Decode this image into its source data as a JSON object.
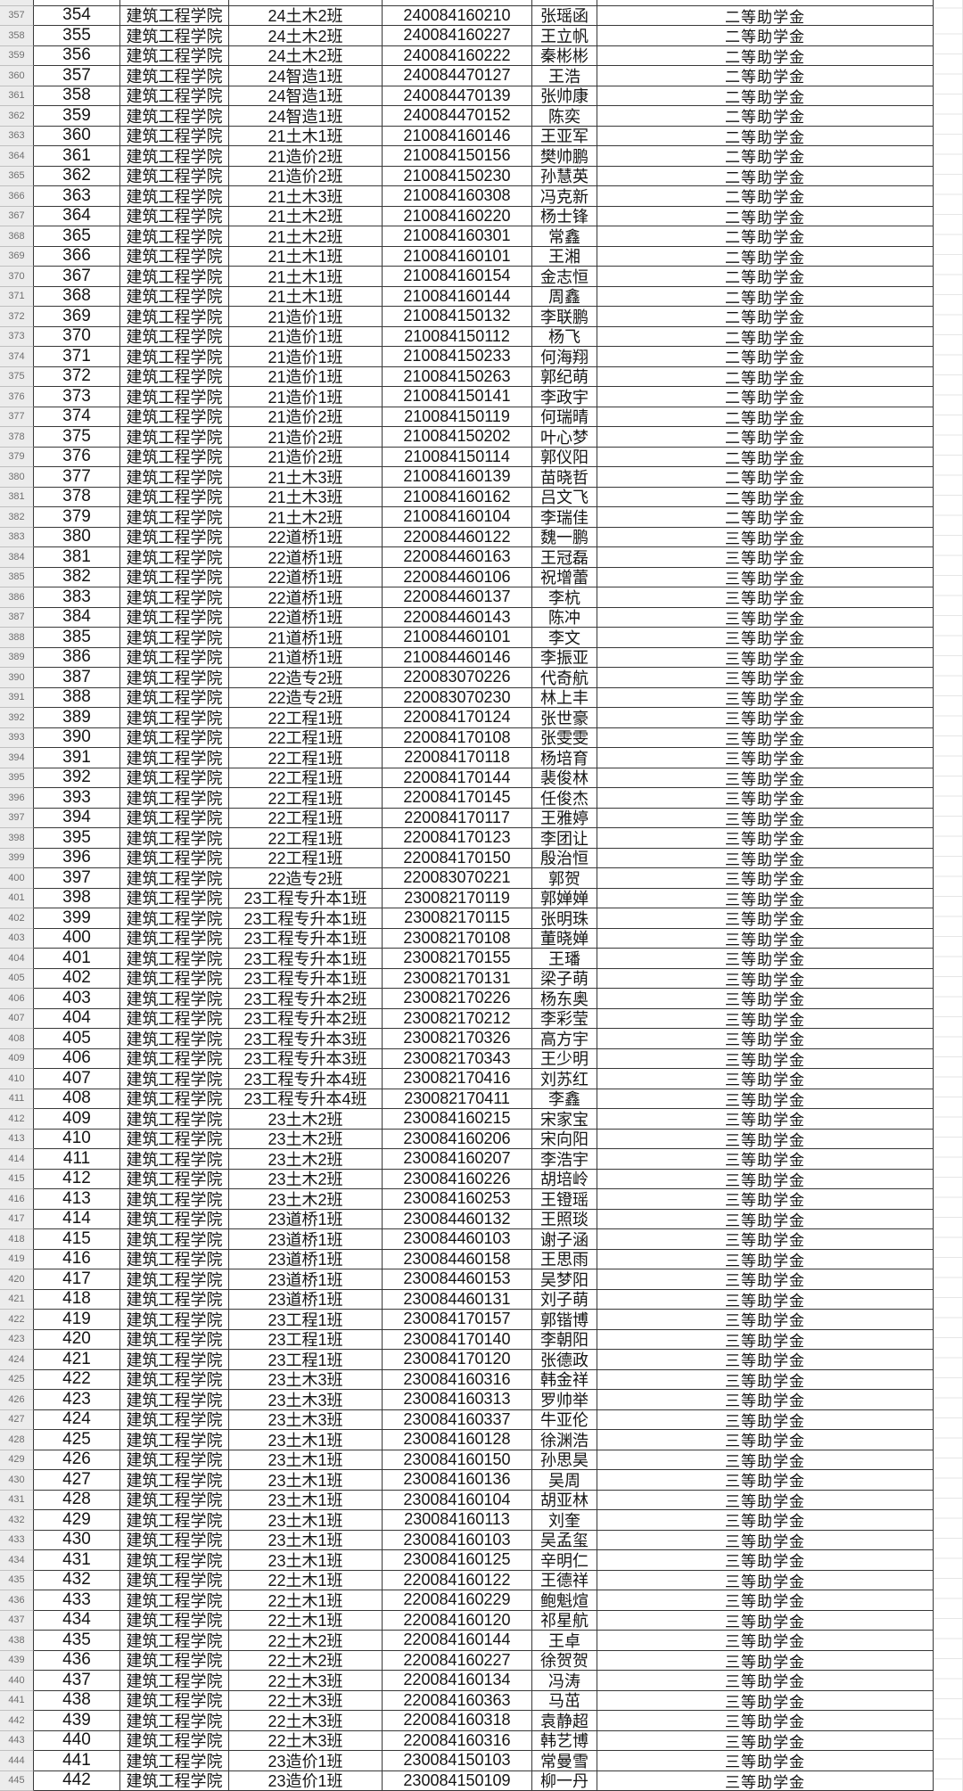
{
  "app": {
    "view": "spreadsheet-scholarship-roster"
  },
  "colors": {
    "bg": "#ffffff",
    "text": "#141414",
    "border_dark": "#383838",
    "border_light": "#bfbfbf",
    "row_header_bg": "#ececec",
    "row_header_text": "#6f6f6f",
    "grid_faint": "#e6e6e6"
  },
  "table": {
    "rows": [
      {
        "row": "357",
        "seq": "354",
        "college": "建筑工程学院",
        "class": "24土木2班",
        "student_id": "240084160210",
        "name": "张瑶函",
        "award": "二等助学金"
      },
      {
        "row": "358",
        "seq": "355",
        "college": "建筑工程学院",
        "class": "24土木2班",
        "student_id": "240084160227",
        "name": "王立帆",
        "award": "二等助学金"
      },
      {
        "row": "359",
        "seq": "356",
        "college": "建筑工程学院",
        "class": "24土木2班",
        "student_id": "240084160222",
        "name": "秦彬彬",
        "award": "二等助学金"
      },
      {
        "row": "360",
        "seq": "357",
        "college": "建筑工程学院",
        "class": "24智造1班",
        "student_id": "240084470127",
        "name": "王浩",
        "award": "二等助学金"
      },
      {
        "row": "361",
        "seq": "358",
        "college": "建筑工程学院",
        "class": "24智造1班",
        "student_id": "240084470139",
        "name": "张帅康",
        "award": "二等助学金"
      },
      {
        "row": "362",
        "seq": "359",
        "college": "建筑工程学院",
        "class": "24智造1班",
        "student_id": "240084470152",
        "name": "陈奕",
        "award": "二等助学金"
      },
      {
        "row": "363",
        "seq": "360",
        "college": "建筑工程学院",
        "class": "21土木1班",
        "student_id": "210084160146",
        "name": "王亚军",
        "award": "二等助学金"
      },
      {
        "row": "364",
        "seq": "361",
        "college": "建筑工程学院",
        "class": "21造价2班",
        "student_id": "210084150156",
        "name": "樊帅鹏",
        "award": "二等助学金"
      },
      {
        "row": "365",
        "seq": "362",
        "college": "建筑工程学院",
        "class": "21造价2班",
        "student_id": "210084150230",
        "name": "孙慧英",
        "award": "二等助学金"
      },
      {
        "row": "366",
        "seq": "363",
        "college": "建筑工程学院",
        "class": "21土木3班",
        "student_id": "210084160308",
        "name": "冯克新",
        "award": "二等助学金"
      },
      {
        "row": "367",
        "seq": "364",
        "college": "建筑工程学院",
        "class": "21土木2班",
        "student_id": "210084160220",
        "name": "杨士锋",
        "award": "二等助学金"
      },
      {
        "row": "368",
        "seq": "365",
        "college": "建筑工程学院",
        "class": "21土木2班",
        "student_id": "210084160301",
        "name": "常鑫",
        "award": "二等助学金"
      },
      {
        "row": "369",
        "seq": "366",
        "college": "建筑工程学院",
        "class": "21土木1班",
        "student_id": "210084160101",
        "name": "王湘",
        "award": "二等助学金"
      },
      {
        "row": "370",
        "seq": "367",
        "college": "建筑工程学院",
        "class": "21土木1班",
        "student_id": "210084160154",
        "name": "金志恒",
        "award": "二等助学金"
      },
      {
        "row": "371",
        "seq": "368",
        "college": "建筑工程学院",
        "class": "21土木1班",
        "student_id": "210084160144",
        "name": "周鑫",
        "award": "二等助学金"
      },
      {
        "row": "372",
        "seq": "369",
        "college": "建筑工程学院",
        "class": "21造价1班",
        "student_id": "210084150132",
        "name": "李联鹏",
        "award": "二等助学金"
      },
      {
        "row": "373",
        "seq": "370",
        "college": "建筑工程学院",
        "class": "21造价1班",
        "student_id": "210084150112",
        "name": "杨飞",
        "award": "二等助学金"
      },
      {
        "row": "374",
        "seq": "371",
        "college": "建筑工程学院",
        "class": "21造价1班",
        "student_id": "210084150233",
        "name": "何海翔",
        "award": "二等助学金"
      },
      {
        "row": "375",
        "seq": "372",
        "college": "建筑工程学院",
        "class": "21造价1班",
        "student_id": "210084150263",
        "name": "郭纪萌",
        "award": "二等助学金"
      },
      {
        "row": "376",
        "seq": "373",
        "college": "建筑工程学院",
        "class": "21造价1班",
        "student_id": "210084150141",
        "name": "李政宇",
        "award": "二等助学金"
      },
      {
        "row": "377",
        "seq": "374",
        "college": "建筑工程学院",
        "class": "21造价2班",
        "student_id": "210084150119",
        "name": "何瑞晴",
        "award": "二等助学金"
      },
      {
        "row": "378",
        "seq": "375",
        "college": "建筑工程学院",
        "class": "21造价2班",
        "student_id": "210084150202",
        "name": "叶心梦",
        "award": "二等助学金"
      },
      {
        "row": "379",
        "seq": "376",
        "college": "建筑工程学院",
        "class": "21造价2班",
        "student_id": "210084150114",
        "name": "郭仪阳",
        "award": "二等助学金"
      },
      {
        "row": "380",
        "seq": "377",
        "college": "建筑工程学院",
        "class": "21土木3班",
        "student_id": "210084160139",
        "name": "苗晓哲",
        "award": "二等助学金"
      },
      {
        "row": "381",
        "seq": "378",
        "college": "建筑工程学院",
        "class": "21土木3班",
        "student_id": "210084160162",
        "name": "吕文飞",
        "award": "二等助学金"
      },
      {
        "row": "382",
        "seq": "379",
        "college": "建筑工程学院",
        "class": "21土木2班",
        "student_id": "210084160104",
        "name": "李瑞佳",
        "award": "二等助学金"
      },
      {
        "row": "383",
        "seq": "380",
        "college": "建筑工程学院",
        "class": "22道桥1班",
        "student_id": "220084460122",
        "name": "魏一鹏",
        "award": "三等助学金"
      },
      {
        "row": "384",
        "seq": "381",
        "college": "建筑工程学院",
        "class": "22道桥1班",
        "student_id": "220084460163",
        "name": "王冠磊",
        "award": "三等助学金"
      },
      {
        "row": "385",
        "seq": "382",
        "college": "建筑工程学院",
        "class": "22道桥1班",
        "student_id": "220084460106",
        "name": "祝增蕾",
        "award": "三等助学金"
      },
      {
        "row": "386",
        "seq": "383",
        "college": "建筑工程学院",
        "class": "22道桥1班",
        "student_id": "220084460137",
        "name": "李杭",
        "award": "三等助学金"
      },
      {
        "row": "387",
        "seq": "384",
        "college": "建筑工程学院",
        "class": "22道桥1班",
        "student_id": "220084460143",
        "name": "陈冲",
        "award": "三等助学金"
      },
      {
        "row": "388",
        "seq": "385",
        "college": "建筑工程学院",
        "class": "21道桥1班",
        "student_id": "210084460101",
        "name": "李文",
        "award": "三等助学金"
      },
      {
        "row": "389",
        "seq": "386",
        "college": "建筑工程学院",
        "class": "21道桥1班",
        "student_id": "210084460146",
        "name": "李振亚",
        "award": "三等助学金"
      },
      {
        "row": "390",
        "seq": "387",
        "college": "建筑工程学院",
        "class": "22造专2班",
        "student_id": "220083070226",
        "name": "代奇航",
        "award": "三等助学金"
      },
      {
        "row": "391",
        "seq": "388",
        "college": "建筑工程学院",
        "class": "22造专2班",
        "student_id": "220083070230",
        "name": "林上丰",
        "award": "三等助学金"
      },
      {
        "row": "392",
        "seq": "389",
        "college": "建筑工程学院",
        "class": "22工程1班",
        "student_id": "220084170124",
        "name": "张世豪",
        "award": "三等助学金"
      },
      {
        "row": "393",
        "seq": "390",
        "college": "建筑工程学院",
        "class": "22工程1班",
        "student_id": "220084170108",
        "name": "张雯雯",
        "award": "三等助学金"
      },
      {
        "row": "394",
        "seq": "391",
        "college": "建筑工程学院",
        "class": "22工程1班",
        "student_id": "220084170118",
        "name": "杨培育",
        "award": "三等助学金"
      },
      {
        "row": "395",
        "seq": "392",
        "college": "建筑工程学院",
        "class": "22工程1班",
        "student_id": "220084170144",
        "name": "裴俊林",
        "award": "三等助学金"
      },
      {
        "row": "396",
        "seq": "393",
        "college": "建筑工程学院",
        "class": "22工程1班",
        "student_id": "220084170145",
        "name": "任俊杰",
        "award": "三等助学金"
      },
      {
        "row": "397",
        "seq": "394",
        "college": "建筑工程学院",
        "class": "22工程1班",
        "student_id": "220084170117",
        "name": "王雅婷",
        "award": "三等助学金"
      },
      {
        "row": "398",
        "seq": "395",
        "college": "建筑工程学院",
        "class": "22工程1班",
        "student_id": "220084170123",
        "name": "李团让",
        "award": "三等助学金"
      },
      {
        "row": "399",
        "seq": "396",
        "college": "建筑工程学院",
        "class": "22工程1班",
        "student_id": "220084170150",
        "name": "殷治恒",
        "award": "三等助学金"
      },
      {
        "row": "400",
        "seq": "397",
        "college": "建筑工程学院",
        "class": "22造专2班",
        "student_id": "220083070221",
        "name": "郭贺",
        "award": "三等助学金"
      },
      {
        "row": "401",
        "seq": "398",
        "college": "建筑工程学院",
        "class": "23工程专升本1班",
        "student_id": "230082170119",
        "name": "郭婵婵",
        "award": "三等助学金"
      },
      {
        "row": "402",
        "seq": "399",
        "college": "建筑工程学院",
        "class": "23工程专升本1班",
        "student_id": "230082170115",
        "name": "张明珠",
        "award": "三等助学金"
      },
      {
        "row": "403",
        "seq": "400",
        "college": "建筑工程学院",
        "class": "23工程专升本1班",
        "student_id": "230082170108",
        "name": "董晓婵",
        "award": "三等助学金"
      },
      {
        "row": "404",
        "seq": "401",
        "college": "建筑工程学院",
        "class": "23工程专升本1班",
        "student_id": "230082170155",
        "name": "王璠",
        "award": "三等助学金"
      },
      {
        "row": "405",
        "seq": "402",
        "college": "建筑工程学院",
        "class": "23工程专升本1班",
        "student_id": "230082170131",
        "name": "梁子萌",
        "award": "三等助学金"
      },
      {
        "row": "406",
        "seq": "403",
        "college": "建筑工程学院",
        "class": "23工程专升本2班",
        "student_id": "230082170226",
        "name": "杨东奥",
        "award": "三等助学金"
      },
      {
        "row": "407",
        "seq": "404",
        "college": "建筑工程学院",
        "class": "23工程专升本2班",
        "student_id": "230082170212",
        "name": "李彩莹",
        "award": "三等助学金"
      },
      {
        "row": "408",
        "seq": "405",
        "college": "建筑工程学院",
        "class": "23工程专升本3班",
        "student_id": "230082170326",
        "name": "高方宇",
        "award": "三等助学金"
      },
      {
        "row": "409",
        "seq": "406",
        "college": "建筑工程学院",
        "class": "23工程专升本3班",
        "student_id": "230082170343",
        "name": "王少明",
        "award": "三等助学金"
      },
      {
        "row": "410",
        "seq": "407",
        "college": "建筑工程学院",
        "class": "23工程专升本4班",
        "student_id": "230082170416",
        "name": "刘苏红",
        "award": "三等助学金"
      },
      {
        "row": "411",
        "seq": "408",
        "college": "建筑工程学院",
        "class": "23工程专升本4班",
        "student_id": "230082170411",
        "name": "李鑫",
        "award": "三等助学金"
      },
      {
        "row": "412",
        "seq": "409",
        "college": "建筑工程学院",
        "class": "23土木2班",
        "student_id": "230084160215",
        "name": "宋家宝",
        "award": "三等助学金"
      },
      {
        "row": "413",
        "seq": "410",
        "college": "建筑工程学院",
        "class": "23土木2班",
        "student_id": "230084160206",
        "name": "宋向阳",
        "award": "三等助学金"
      },
      {
        "row": "414",
        "seq": "411",
        "college": "建筑工程学院",
        "class": "23土木2班",
        "student_id": "230084160207",
        "name": "李浩宇",
        "award": "三等助学金"
      },
      {
        "row": "415",
        "seq": "412",
        "college": "建筑工程学院",
        "class": "23土木2班",
        "student_id": "230084160226",
        "name": "胡培岭",
        "award": "三等助学金"
      },
      {
        "row": "416",
        "seq": "413",
        "college": "建筑工程学院",
        "class": "23土木2班",
        "student_id": "230084160253",
        "name": "王镫瑶",
        "award": "三等助学金"
      },
      {
        "row": "417",
        "seq": "414",
        "college": "建筑工程学院",
        "class": "23道桥1班",
        "student_id": "230084460132",
        "name": "王照琰",
        "award": "三等助学金"
      },
      {
        "row": "418",
        "seq": "415",
        "college": "建筑工程学院",
        "class": "23道桥1班",
        "student_id": "230084460103",
        "name": "谢子涵",
        "award": "三等助学金"
      },
      {
        "row": "419",
        "seq": "416",
        "college": "建筑工程学院",
        "class": "23道桥1班",
        "student_id": "230084460158",
        "name": "王思雨",
        "award": "三等助学金"
      },
      {
        "row": "420",
        "seq": "417",
        "college": "建筑工程学院",
        "class": "23道桥1班",
        "student_id": "230084460153",
        "name": "吴梦阳",
        "award": "三等助学金"
      },
      {
        "row": "421",
        "seq": "418",
        "college": "建筑工程学院",
        "class": "23道桥1班",
        "student_id": "230084460131",
        "name": "刘子萌",
        "award": "三等助学金"
      },
      {
        "row": "422",
        "seq": "419",
        "college": "建筑工程学院",
        "class": "23工程1班",
        "student_id": "230084170157",
        "name": "郭锴博",
        "award": "三等助学金"
      },
      {
        "row": "423",
        "seq": "420",
        "college": "建筑工程学院",
        "class": "23工程1班",
        "student_id": "230084170140",
        "name": "李朝阳",
        "award": "三等助学金"
      },
      {
        "row": "424",
        "seq": "421",
        "college": "建筑工程学院",
        "class": "23工程1班",
        "student_id": "230084170120",
        "name": "张德政",
        "award": "三等助学金"
      },
      {
        "row": "425",
        "seq": "422",
        "college": "建筑工程学院",
        "class": "23土木3班",
        "student_id": "230084160316",
        "name": "韩金祥",
        "award": "三等助学金"
      },
      {
        "row": "426",
        "seq": "423",
        "college": "建筑工程学院",
        "class": "23土木3班",
        "student_id": "230084160313",
        "name": "罗帅举",
        "award": "三等助学金"
      },
      {
        "row": "427",
        "seq": "424",
        "college": "建筑工程学院",
        "class": "23土木3班",
        "student_id": "230084160337",
        "name": "牛亚伦",
        "award": "三等助学金"
      },
      {
        "row": "428",
        "seq": "425",
        "college": "建筑工程学院",
        "class": "23土木1班",
        "student_id": "230084160128",
        "name": "徐渊浩",
        "award": "三等助学金"
      },
      {
        "row": "429",
        "seq": "426",
        "college": "建筑工程学院",
        "class": "23土木1班",
        "student_id": "230084160150",
        "name": "孙思昊",
        "award": "三等助学金"
      },
      {
        "row": "430",
        "seq": "427",
        "college": "建筑工程学院",
        "class": "23土木1班",
        "student_id": "230084160136",
        "name": "吴周",
        "award": "三等助学金"
      },
      {
        "row": "431",
        "seq": "428",
        "college": "建筑工程学院",
        "class": "23土木1班",
        "student_id": "230084160104",
        "name": "胡亚林",
        "award": "三等助学金"
      },
      {
        "row": "432",
        "seq": "429",
        "college": "建筑工程学院",
        "class": "23土木1班",
        "student_id": "230084160113",
        "name": "刘奎",
        "award": "三等助学金"
      },
      {
        "row": "433",
        "seq": "430",
        "college": "建筑工程学院",
        "class": "23土木1班",
        "student_id": "230084160103",
        "name": "吴孟玺",
        "award": "三等助学金"
      },
      {
        "row": "434",
        "seq": "431",
        "college": "建筑工程学院",
        "class": "23土木1班",
        "student_id": "230084160125",
        "name": "辛明仁",
        "award": "三等助学金"
      },
      {
        "row": "435",
        "seq": "432",
        "college": "建筑工程学院",
        "class": "22土木1班",
        "student_id": "220084160122",
        "name": "王德祥",
        "award": "三等助学金"
      },
      {
        "row": "436",
        "seq": "433",
        "college": "建筑工程学院",
        "class": "22土木1班",
        "student_id": "220084160229",
        "name": "鲍魁煊",
        "award": "三等助学金"
      },
      {
        "row": "437",
        "seq": "434",
        "college": "建筑工程学院",
        "class": "22土木1班",
        "student_id": "220084160120",
        "name": "祁星航",
        "award": "三等助学金"
      },
      {
        "row": "438",
        "seq": "435",
        "college": "建筑工程学院",
        "class": "22土木2班",
        "student_id": "220084160144",
        "name": "王卓",
        "award": "三等助学金"
      },
      {
        "row": "439",
        "seq": "436",
        "college": "建筑工程学院",
        "class": "22土木2班",
        "student_id": "220084160227",
        "name": "徐贺贺",
        "award": "三等助学金"
      },
      {
        "row": "440",
        "seq": "437",
        "college": "建筑工程学院",
        "class": "22土木3班",
        "student_id": "220084160134",
        "name": "冯涛",
        "award": "三等助学金"
      },
      {
        "row": "441",
        "seq": "438",
        "college": "建筑工程学院",
        "class": "22土木3班",
        "student_id": "220084160363",
        "name": "马茁",
        "award": "三等助学金"
      },
      {
        "row": "442",
        "seq": "439",
        "college": "建筑工程学院",
        "class": "22土木3班",
        "student_id": "220084160318",
        "name": "袁静超",
        "award": "三等助学金"
      },
      {
        "row": "443",
        "seq": "440",
        "college": "建筑工程学院",
        "class": "22土木3班",
        "student_id": "220084160316",
        "name": "韩艺博",
        "award": "三等助学金"
      },
      {
        "row": "444",
        "seq": "441",
        "college": "建筑工程学院",
        "class": "23造价1班",
        "student_id": "230084150103",
        "name": "常曼雪",
        "award": "三等助学金"
      },
      {
        "row": "445",
        "seq": "442",
        "college": "建筑工程学院",
        "class": "23造价1班",
        "student_id": "230084150109",
        "name": "柳一丹",
        "award": "三等助学金"
      }
    ]
  }
}
